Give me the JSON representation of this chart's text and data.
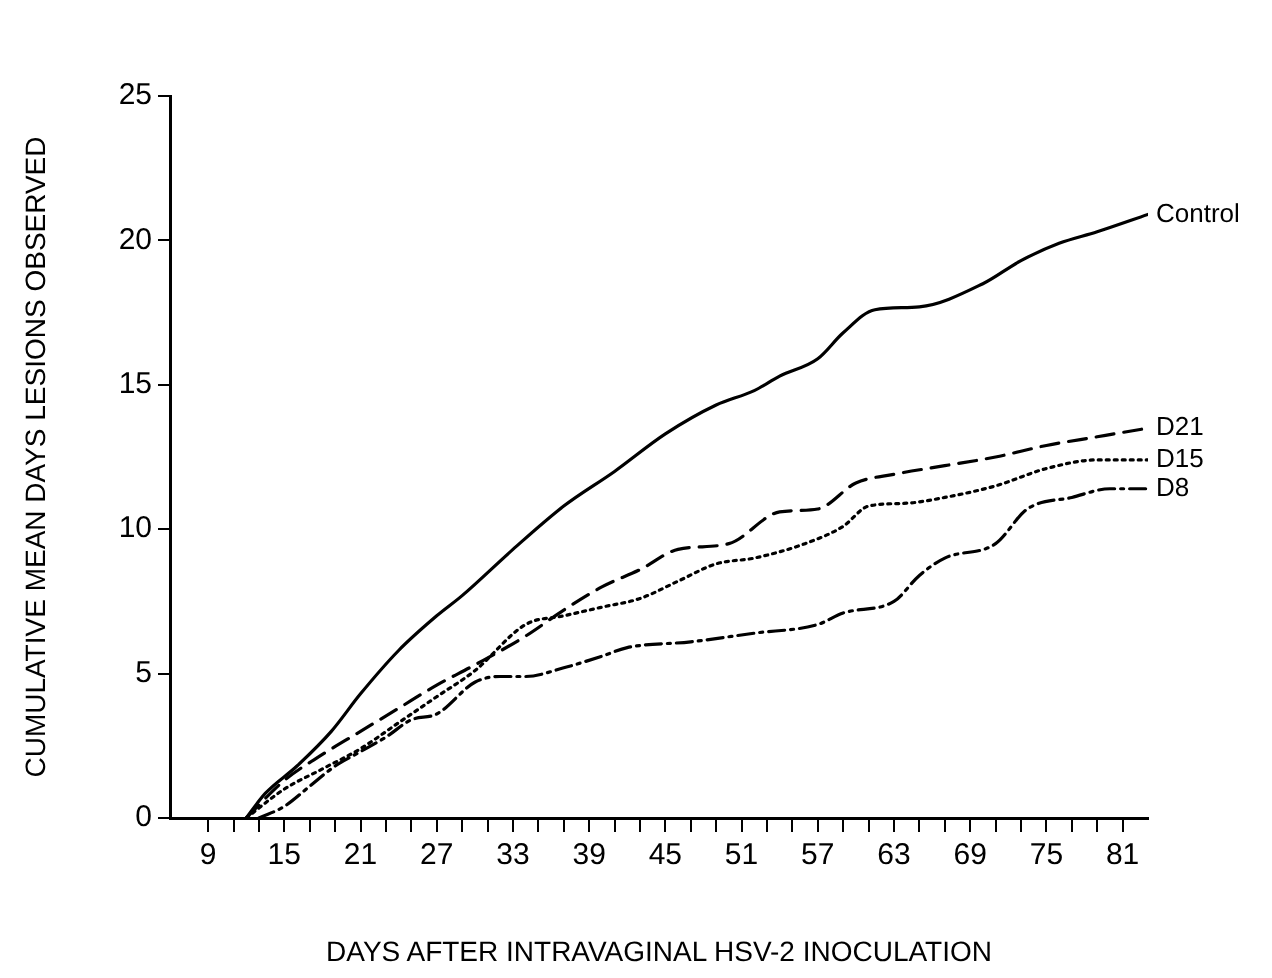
{
  "chart_data": {
    "type": "line",
    "xlabel": "DAYS AFTER INTRAVAGINAL HSV-2 INOCULATION",
    "ylabel": "CUMULATIVE MEAN DAYS LESIONS OBSERVED",
    "xlim": [
      6,
      83
    ],
    "ylim": [
      0,
      25
    ],
    "xticks": [
      9,
      {
        "value": 11,
        "label": null
      },
      {
        "value": 13,
        "label": null
      },
      15,
      {
        "value": 17,
        "label": null
      },
      {
        "value": 19,
        "label": null
      },
      21,
      {
        "value": 23,
        "label": null
      },
      {
        "value": 25,
        "label": null
      },
      27,
      {
        "value": 29,
        "label": null
      },
      {
        "value": 31,
        "label": null
      },
      33,
      {
        "value": 35,
        "label": null
      },
      {
        "value": 37,
        "label": null
      },
      39,
      {
        "value": 41,
        "label": null
      },
      {
        "value": 43,
        "label": null
      },
      45,
      {
        "value": 47,
        "label": null
      },
      {
        "value": 49,
        "label": null
      },
      51,
      {
        "value": 53,
        "label": null
      },
      {
        "value": 55,
        "label": null
      },
      57,
      {
        "value": 59,
        "label": null
      },
      {
        "value": 61,
        "label": null
      },
      63,
      {
        "value": 65,
        "label": null
      },
      {
        "value": 67,
        "label": null
      },
      69,
      {
        "value": 71,
        "label": null
      },
      {
        "value": 73,
        "label": null
      },
      75,
      {
        "value": 77,
        "label": null
      },
      {
        "value": 79,
        "label": null
      },
      81
    ],
    "yticks": [
      0,
      5,
      10,
      15,
      20,
      25
    ],
    "grid": false,
    "legend": false,
    "marker": "none",
    "series": [
      {
        "name": "Control",
        "color": "#000000",
        "line_style": "solid",
        "x": [
          12,
          13.5,
          16,
          18.7,
          21,
          24,
          27,
          29,
          33,
          37,
          41,
          45,
          49,
          52,
          54,
          57,
          59,
          61.5,
          65,
          70,
          73,
          76,
          79,
          83
        ],
        "values": [
          0,
          0.85,
          1.8,
          3.0,
          4.3,
          5.8,
          7.0,
          7.7,
          9.3,
          10.8,
          12,
          13.3,
          14.3,
          14.8,
          15.3,
          15.9,
          16.8,
          17.6,
          17.7,
          18.5,
          19.3,
          19.9,
          20.3,
          20.9
        ]
      },
      {
        "name": "D21",
        "color": "#000000",
        "line_style": "dashed",
        "x": [
          12,
          15,
          18,
          21,
          24,
          27,
          30,
          34,
          37,
          40,
          43,
          46,
          50,
          54,
          57,
          60,
          63,
          67,
          71,
          75,
          79,
          83
        ],
        "values": [
          0,
          1.3,
          2.2,
          3.0,
          3.8,
          4.6,
          5.3,
          6.3,
          7.2,
          8.0,
          8.6,
          9.3,
          9.5,
          10.6,
          10.7,
          11.6,
          11.9,
          12.2,
          12.5,
          12.9,
          13.2,
          13.5
        ]
      },
      {
        "name": "D15",
        "color": "#000000",
        "line_style": "dotted",
        "x": [
          12,
          15,
          18,
          21,
          24,
          27,
          30,
          34,
          37,
          40,
          43,
          46,
          49,
          52,
          56,
          59,
          61,
          64,
          67,
          71,
          75,
          79,
          83
        ],
        "values": [
          0,
          1.0,
          1.7,
          2.4,
          3.3,
          4.2,
          5.1,
          6.7,
          7.0,
          7.3,
          7.6,
          8.2,
          8.8,
          9.0,
          9.5,
          10.1,
          10.8,
          10.9,
          11.1,
          11.5,
          12.1,
          12.4,
          12.4
        ]
      },
      {
        "name": "D8",
        "color": "#000000",
        "line_style": "dashdot",
        "x": [
          13,
          15,
          17,
          19,
          21,
          23,
          25,
          27,
          30,
          32,
          34,
          37,
          40,
          42,
          47,
          52,
          57,
          59,
          63,
          65,
          67,
          71,
          73.5,
          77,
          80,
          83
        ],
        "values": [
          0,
          0.4,
          1.1,
          1.8,
          2.3,
          2.8,
          3.4,
          3.6,
          4.7,
          4.9,
          4.9,
          5.2,
          5.6,
          5.9,
          6.1,
          6.4,
          6.7,
          7.1,
          7.5,
          8.4,
          9.0,
          9.5,
          10.7,
          11.1,
          11.4,
          11.4
        ]
      }
    ]
  }
}
